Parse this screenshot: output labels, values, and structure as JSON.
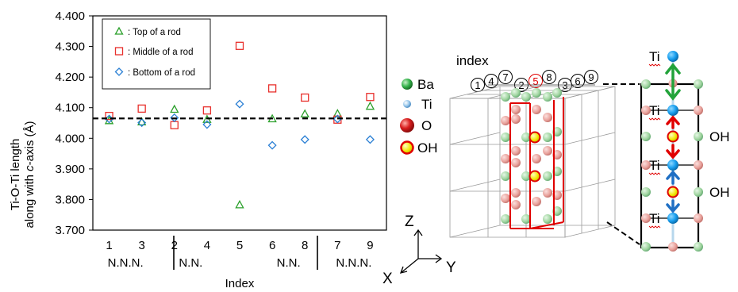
{
  "chart_data": {
    "type": "scatter",
    "ylabel_line1": "Ti-O-Ti length",
    "ylabel_line2_parts": [
      "along with ",
      "c",
      "-axis (Å)"
    ],
    "xlabel": "Index",
    "ylim": [
      3.7,
      4.4
    ],
    "yticks": [
      "3.700",
      "3.800",
      "3.900",
      "4.000",
      "4.100",
      "4.200",
      "4.300",
      "4.400"
    ],
    "reference_line": 4.065,
    "categories": [
      "1",
      "3",
      "2",
      "4",
      "5",
      "6",
      "8",
      "7",
      "9"
    ],
    "groups": [
      {
        "label": "N.N.N.",
        "indices": [
          0,
          1
        ]
      },
      {
        "label": "N.N.",
        "indices": [
          2,
          3
        ]
      },
      {
        "label": "N.N.",
        "indices": [
          5,
          6
        ]
      },
      {
        "label": "N.N.N.",
        "indices": [
          7,
          8
        ]
      }
    ],
    "series": [
      {
        "name": ": Top of a rod",
        "marker": "triangle",
        "color": "#2ca02c",
        "values": [
          4.057,
          4.053,
          4.094,
          4.061,
          3.782,
          4.063,
          4.079,
          4.08,
          4.104
        ]
      },
      {
        "name": ": Middle of a rod",
        "marker": "square",
        "color": "#e8302c",
        "values": [
          4.073,
          4.097,
          4.043,
          4.091,
          4.302,
          4.163,
          4.133,
          4.061,
          4.135
        ]
      },
      {
        "name": ": Bottom of a rod",
        "marker": "diamond",
        "color": "#2a7fd4",
        "values": [
          4.063,
          4.051,
          4.067,
          4.045,
          4.112,
          3.977,
          3.996,
          4.063,
          3.996
        ]
      }
    ]
  },
  "structure": {
    "title": "index",
    "index_labels": [
      "1",
      "4",
      "7",
      "2",
      "5",
      "8",
      "3",
      "6",
      "9"
    ],
    "highlight_index": "5",
    "legend": [
      {
        "label": "Ba",
        "color": "#33b24a"
      },
      {
        "label": "Ti",
        "color": "#6fb6e8"
      },
      {
        "label": "O",
        "color": "#d81e1e"
      },
      {
        "label": "OH",
        "color": "#f2e600"
      }
    ],
    "axes": {
      "z": "Z",
      "x": "X",
      "y": "Y"
    }
  },
  "rod": {
    "ti_labels": [
      "Ti",
      "Ti",
      "Ti",
      "Ti"
    ],
    "oh_labels": [
      "OH",
      "OH"
    ]
  }
}
